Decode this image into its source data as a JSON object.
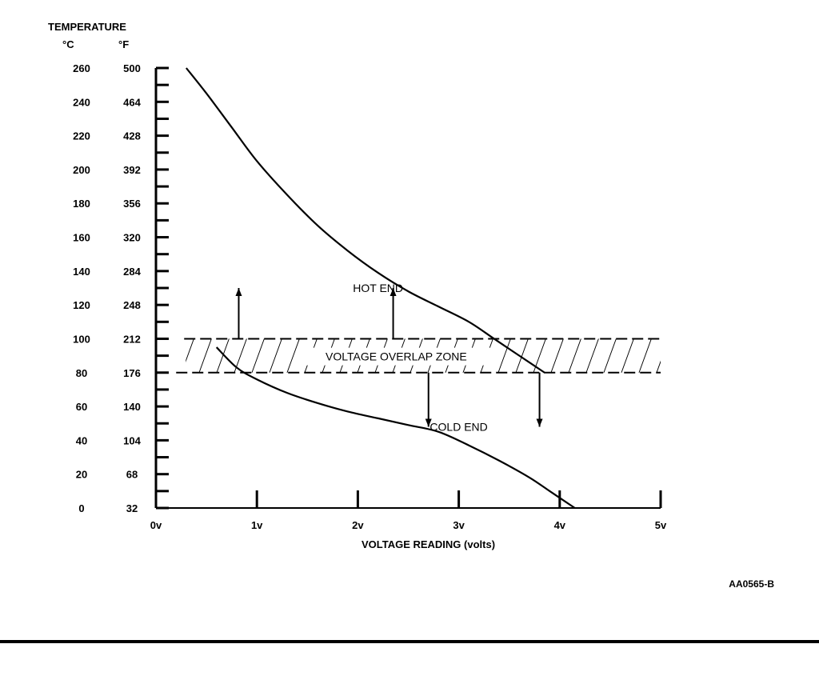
{
  "chart_data": {
    "type": "line",
    "title": "",
    "y_axis": {
      "title": "TEMPERATURE",
      "unit_c": "°C",
      "unit_f": "°F",
      "ticks_c": [
        "260",
        "240",
        "220",
        "200",
        "180",
        "160",
        "140",
        "120",
        "100",
        "80",
        "60",
        "40",
        "20",
        "0"
      ],
      "ticks_f": [
        "500",
        "464",
        "428",
        "392",
        "356",
        "320",
        "284",
        "248",
        "212",
        "176",
        "140",
        "104",
        "68",
        "32"
      ],
      "tick_values_c": [
        260,
        240,
        220,
        200,
        180,
        160,
        140,
        120,
        100,
        80,
        60,
        40,
        20,
        0
      ],
      "ylim": [
        0,
        260
      ]
    },
    "x_axis": {
      "title": "VOLTAGE READING (volts)",
      "ticks": [
        "0v",
        "1v",
        "2v",
        "3v",
        "4v",
        "5v"
      ],
      "tick_values": [
        0,
        1,
        2,
        3,
        4,
        5
      ],
      "xlim": [
        0,
        5
      ]
    },
    "series": [
      {
        "x": [
          0.3,
          0.5,
          0.75,
          1.0,
          1.3,
          1.6,
          1.9,
          2.2,
          2.5,
          2.8,
          3.1,
          3.35,
          3.6,
          3.85
        ],
        "y": [
          260,
          245,
          225,
          205,
          185,
          167,
          152,
          139,
          128,
          119,
          110,
          100,
          90,
          80
        ]
      },
      {
        "x": [
          0.6,
          0.8,
          1.0,
          1.3,
          1.6,
          1.9,
          2.2,
          2.5,
          2.8,
          3.1,
          3.4,
          3.7,
          3.9,
          4.05,
          4.15
        ],
        "y": [
          95,
          83,
          76,
          68,
          62,
          57,
          53,
          49,
          45,
          37,
          28,
          18,
          10,
          4,
          0
        ]
      }
    ],
    "overlap_zone": {
      "label": "VOLTAGE OVERLAP ZONE",
      "y_range_c": [
        80,
        100
      ],
      "x_range": [
        0.2,
        5.0
      ]
    },
    "annotations": [
      {
        "text": "HOT END",
        "x": 2.2,
        "y_c": 130
      },
      {
        "text": "COLD END",
        "x": 3.0,
        "y_c": 48
      }
    ],
    "arrows": [
      {
        "x": 0.82,
        "from_c": 100,
        "to_c": 130,
        "direction": "up"
      },
      {
        "x": 2.35,
        "from_c": 100,
        "to_c": 130,
        "direction": "up"
      },
      {
        "x": 2.7,
        "from_c": 80,
        "to_c": 48,
        "direction": "down"
      },
      {
        "x": 3.8,
        "from_c": 80,
        "to_c": 48,
        "direction": "down"
      }
    ],
    "grid": false
  },
  "figure_id": "AA0565-B"
}
